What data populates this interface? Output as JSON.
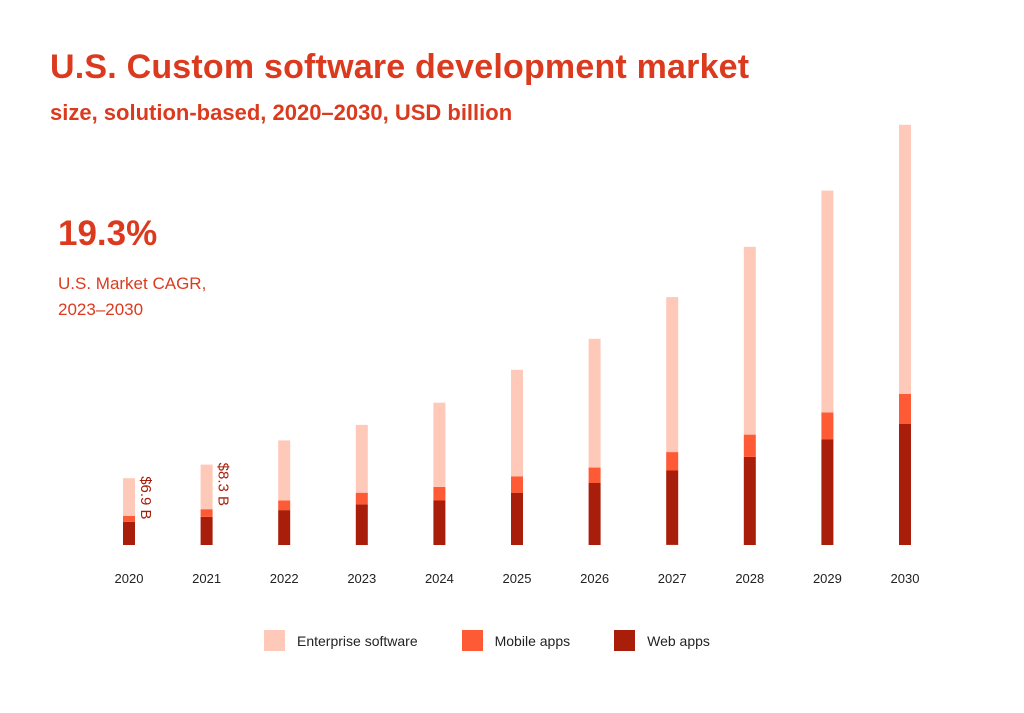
{
  "chart_data": {
    "type": "bar",
    "stacked": true,
    "title": "U.S. Custom software development market",
    "subtitle": "size, solution-based, 2020–2030, USD billion",
    "categories": [
      "2020",
      "2021",
      "2022",
      "2023",
      "2024",
      "2025",
      "2026",
      "2027",
      "2028",
      "2029",
      "2030"
    ],
    "series": [
      {
        "name": "Web apps",
        "color": "#a81e0a",
        "values": [
          2.4,
          2.9,
          3.6,
          4.2,
          4.6,
          5.4,
          6.4,
          7.7,
          9.1,
          10.9,
          12.5
        ]
      },
      {
        "name": "Mobile apps",
        "color": "#ff5a36",
        "values": [
          0.6,
          0.8,
          1.0,
          1.2,
          1.4,
          1.7,
          1.6,
          1.9,
          2.3,
          2.8,
          3.1
        ]
      },
      {
        "name": "Enterprise software",
        "color": "#ffc9b9",
        "values": [
          3.9,
          4.6,
          6.2,
          7.0,
          8.7,
          11.0,
          13.3,
          16.0,
          19.4,
          22.9,
          27.8
        ]
      }
    ],
    "data_labels": {
      "2020": "$6.9 B",
      "2021": "$8.3 B"
    },
    "ylim": [
      0,
      44
    ],
    "xlabel": "",
    "ylabel": ""
  },
  "kpi": {
    "value": "19.3%",
    "label_line1": "U.S. Market CAGR,",
    "label_line2": "2023–2030"
  },
  "legend": [
    {
      "label": "Enterprise software",
      "color": "#ffc9b9"
    },
    {
      "label": "Mobile apps",
      "color": "#ff5a36"
    },
    {
      "label": "Web apps",
      "color": "#a81e0a"
    }
  ]
}
